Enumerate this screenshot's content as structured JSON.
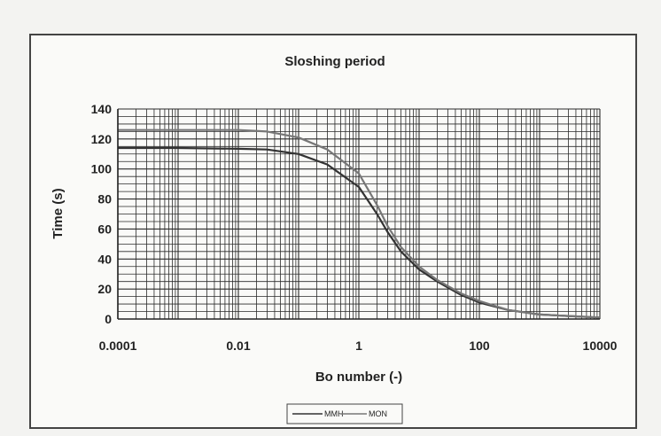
{
  "chart_data": {
    "type": "line",
    "title": "Sloshing period",
    "xlabel": "Bo number (-)",
    "ylabel": "Time (s)",
    "xscale": "log",
    "xlim": [
      0.0001,
      10000
    ],
    "ylim": [
      0,
      140
    ],
    "x_ticks": [
      "0.0001",
      "0.01",
      "1",
      "100",
      "10000"
    ],
    "y_ticks": [
      "0",
      "20",
      "40",
      "60",
      "80",
      "100",
      "120",
      "140"
    ],
    "grid": true,
    "legend_position": "bottom-center",
    "series": [
      {
        "name": "MMH",
        "color": "#333333",
        "x": [
          0.0001,
          0.001,
          0.01,
          0.03,
          0.1,
          0.3,
          1,
          2,
          3,
          5,
          10,
          20,
          50,
          100,
          300,
          1000,
          3000,
          10000
        ],
        "y": [
          114,
          114,
          113.5,
          113,
          110,
          103,
          88,
          70,
          58,
          45,
          33,
          25,
          16,
          11,
          6,
          3,
          2,
          1
        ]
      },
      {
        "name": "MON",
        "color": "#777777",
        "x": [
          0.0001,
          0.001,
          0.01,
          0.03,
          0.1,
          0.3,
          1,
          2,
          3,
          5,
          10,
          20,
          50,
          100,
          300,
          1000,
          3000,
          10000
        ],
        "y": [
          126,
          126,
          126,
          125,
          121,
          113,
          97,
          76,
          62,
          48,
          35,
          26,
          17,
          12,
          6,
          3,
          2,
          1
        ]
      }
    ]
  }
}
